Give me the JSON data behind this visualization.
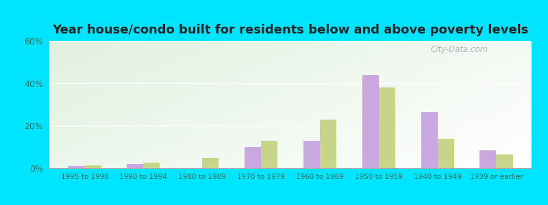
{
  "title": "Year house/condo built for residents below and above poverty levels",
  "categories": [
    "1995 to 1998",
    "1990 to 1994",
    "1980 to 1989",
    "1970 to 1979",
    "1960 to 1969",
    "1950 to 1959",
    "1940 to 1949",
    "1939 or earlier"
  ],
  "below_poverty": [
    1.0,
    2.0,
    0.0,
    10.0,
    13.0,
    44.0,
    26.5,
    8.5
  ],
  "above_poverty": [
    1.2,
    2.5,
    5.0,
    13.0,
    23.0,
    38.0,
    14.0,
    6.5
  ],
  "below_color": "#c9a8e0",
  "above_color": "#c8d48a",
  "ylim": [
    0,
    60
  ],
  "yticks": [
    0,
    20,
    40,
    60
  ],
  "ytick_labels": [
    "0%",
    "20%",
    "40%",
    "60%"
  ],
  "outer_background": "#00e5ff",
  "bar_width": 0.28,
  "title_fontsize": 13,
  "watermark": "City-Data.com"
}
